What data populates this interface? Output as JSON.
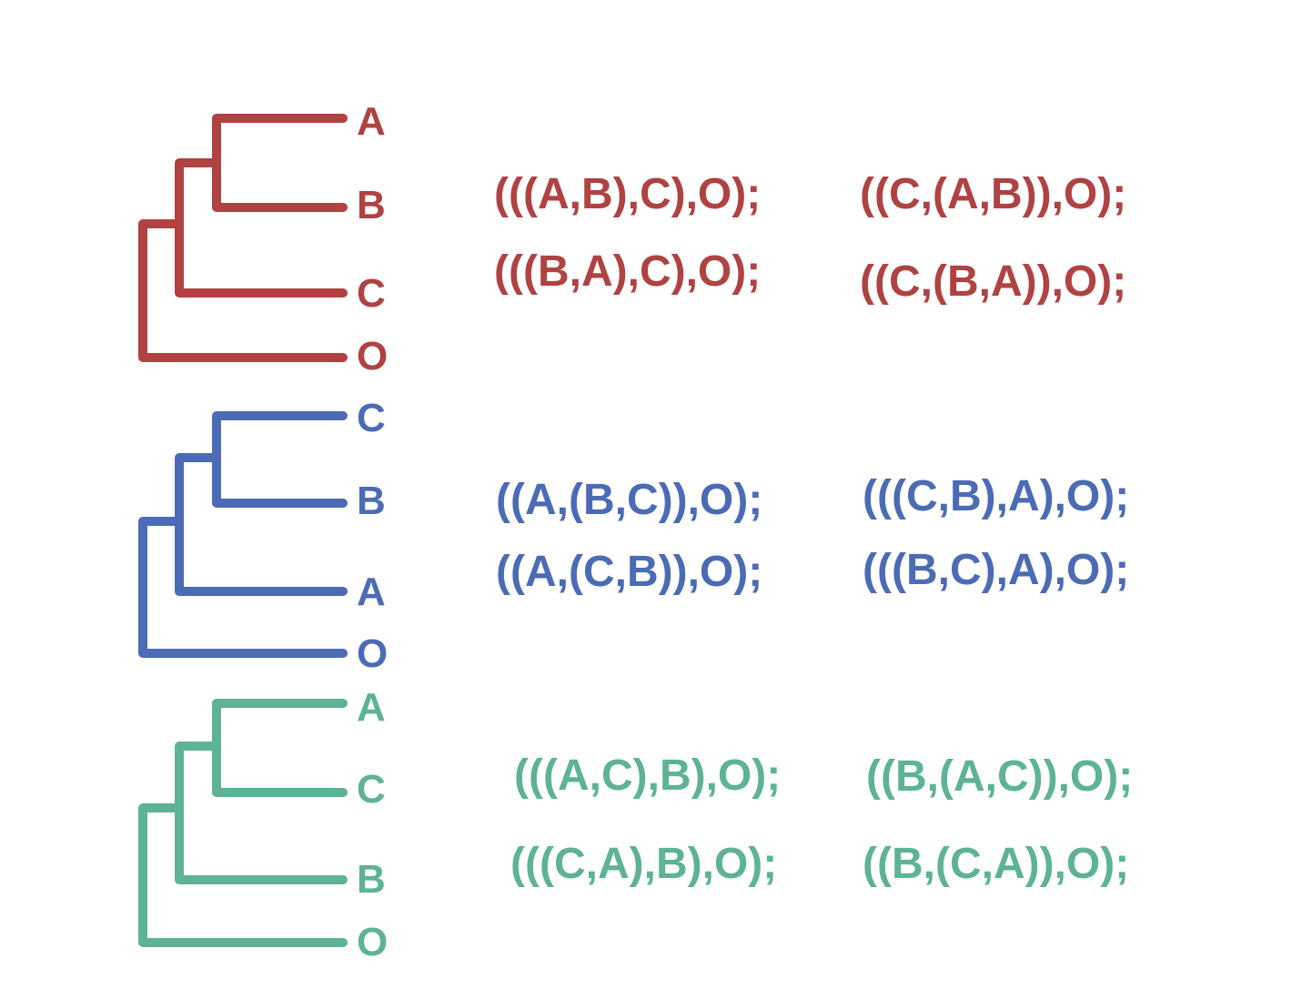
{
  "colors": {
    "red": "#b04242",
    "blue": "#4b6bb5",
    "green": "#5db394"
  },
  "trees": [
    {
      "color": "#b04242",
      "tips": [
        "A",
        "B",
        "C",
        "O"
      ],
      "newick": [
        "(((A,B),C),O);",
        "((C,(A,B)),O);",
        "(((B,A),C),O);",
        "((C,(B,A)),O);"
      ]
    },
    {
      "color": "#4b6bb5",
      "tips": [
        "C",
        "B",
        "A",
        "O"
      ],
      "newick": [
        "((A,(B,C)),O);",
        "(((C,B),A),O);",
        "((A,(C,B)),O);",
        "(((B,C),A),O);"
      ]
    },
    {
      "color": "#5db394",
      "tips": [
        "A",
        "C",
        "B",
        "O"
      ],
      "newick": [
        "(((A,C),B),O);",
        "((B,(A,C)),O);",
        "(((C,A),B),O);",
        "((B,(C,A)),O);"
      ]
    }
  ]
}
